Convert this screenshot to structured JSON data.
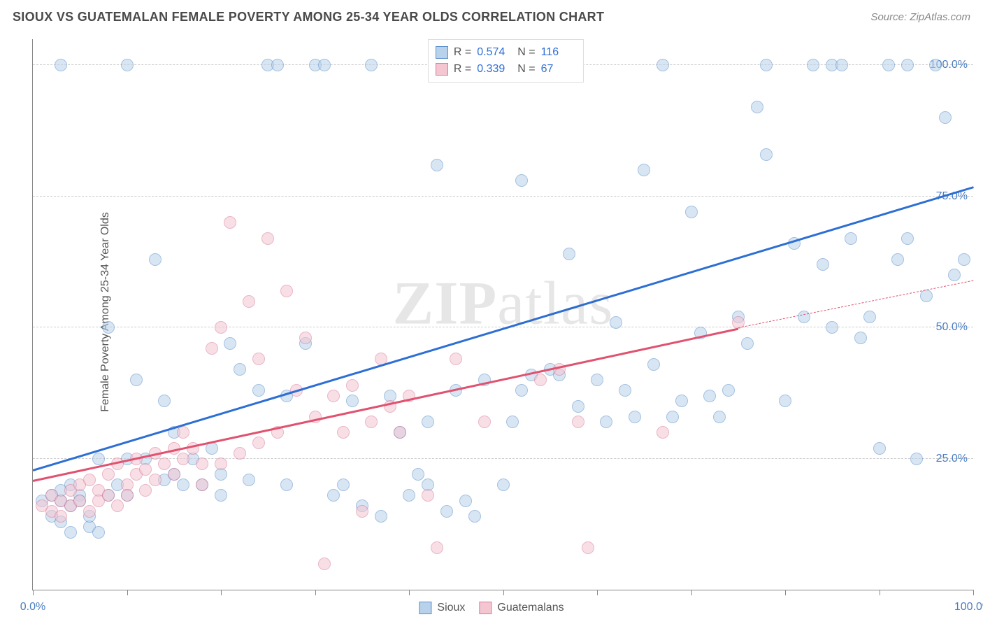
{
  "title": "SIOUX VS GUATEMALAN FEMALE POVERTY AMONG 25-34 YEAR OLDS CORRELATION CHART",
  "source_label": "Source: ZipAtlas.com",
  "y_axis_label": "Female Poverty Among 25-34 Year Olds",
  "watermark": {
    "bold": "ZIP",
    "light": "atlas"
  },
  "chart": {
    "type": "scatter",
    "xlim": [
      0,
      100
    ],
    "ylim": [
      0,
      105
    ],
    "x_ticks_pct": [
      0,
      10,
      20,
      30,
      40,
      50,
      60,
      70,
      80,
      90,
      100
    ],
    "x_tick_labels": {
      "0": "0.0%",
      "100": "100.0%"
    },
    "y_gridlines_pct": [
      25,
      50,
      75,
      100
    ],
    "y_tick_labels": {
      "25": "25.0%",
      "50": "50.0%",
      "75": "75.0%",
      "100": "100.0%"
    },
    "background_color": "#ffffff",
    "grid_color": "#cccccc",
    "axis_color": "#888888",
    "tick_label_color": "#4a7dbf",
    "marker_radius": 9,
    "marker_opacity": 0.55
  },
  "series": [
    {
      "name": "Sioux",
      "fill": "#b9d2ec",
      "stroke": "#5b8fc9",
      "line_color": "#2d6fd4",
      "R": "0.574",
      "N": "116",
      "trend": {
        "x1": 0,
        "y1": 23,
        "x2": 100,
        "y2": 77,
        "dashed_from_x": 100
      },
      "points": [
        [
          1,
          17
        ],
        [
          2,
          18
        ],
        [
          2,
          14
        ],
        [
          3,
          17
        ],
        [
          3,
          19
        ],
        [
          3,
          13
        ],
        [
          4,
          16
        ],
        [
          4,
          20
        ],
        [
          4,
          11
        ],
        [
          5,
          18
        ],
        [
          5,
          17
        ],
        [
          6,
          12
        ],
        [
          6,
          14
        ],
        [
          7,
          11
        ],
        [
          7,
          25
        ],
        [
          8,
          18
        ],
        [
          8,
          50
        ],
        [
          9,
          20
        ],
        [
          10,
          25
        ],
        [
          10,
          18
        ],
        [
          11,
          40
        ],
        [
          12,
          25
        ],
        [
          13,
          63
        ],
        [
          14,
          21
        ],
        [
          15,
          22
        ],
        [
          15,
          30
        ],
        [
          16,
          20
        ],
        [
          17,
          25
        ],
        [
          18,
          20
        ],
        [
          19,
          27
        ],
        [
          20,
          18
        ],
        [
          20,
          22
        ],
        [
          21,
          47
        ],
        [
          22,
          42
        ],
        [
          23,
          21
        ],
        [
          24,
          38
        ],
        [
          25,
          100
        ],
        [
          26,
          100
        ],
        [
          27,
          20
        ],
        [
          29,
          47
        ],
        [
          30,
          100
        ],
        [
          31,
          100
        ],
        [
          32,
          18
        ],
        [
          33,
          20
        ],
        [
          34,
          36
        ],
        [
          35,
          16
        ],
        [
          36,
          100
        ],
        [
          37,
          14
        ],
        [
          38,
          37
        ],
        [
          39,
          30
        ],
        [
          40,
          18
        ],
        [
          41,
          22
        ],
        [
          42,
          20
        ],
        [
          43,
          81
        ],
        [
          44,
          15
        ],
        [
          45,
          38
        ],
        [
          46,
          17
        ],
        [
          47,
          14
        ],
        [
          48,
          40
        ],
        [
          50,
          20
        ],
        [
          51,
          32
        ],
        [
          52,
          38
        ],
        [
          53,
          41
        ],
        [
          55,
          42
        ],
        [
          56,
          41
        ],
        [
          57,
          64
        ],
        [
          58,
          35
        ],
        [
          60,
          40
        ],
        [
          61,
          32
        ],
        [
          62,
          51
        ],
        [
          63,
          38
        ],
        [
          64,
          33
        ],
        [
          65,
          80
        ],
        [
          66,
          43
        ],
        [
          67,
          100
        ],
        [
          68,
          33
        ],
        [
          69,
          36
        ],
        [
          70,
          72
        ],
        [
          71,
          49
        ],
        [
          72,
          37
        ],
        [
          73,
          33
        ],
        [
          74,
          38
        ],
        [
          75,
          52
        ],
        [
          76,
          47
        ],
        [
          77,
          92
        ],
        [
          78,
          100
        ],
        [
          78,
          83
        ],
        [
          80,
          36
        ],
        [
          81,
          66
        ],
        [
          82,
          52
        ],
        [
          83,
          100
        ],
        [
          84,
          62
        ],
        [
          85,
          100
        ],
        [
          85,
          50
        ],
        [
          86,
          100
        ],
        [
          87,
          67
        ],
        [
          88,
          48
        ],
        [
          89,
          52
        ],
        [
          90,
          27
        ],
        [
          91,
          100
        ],
        [
          92,
          63
        ],
        [
          93,
          67
        ],
        [
          94,
          25
        ],
        [
          95,
          56
        ],
        [
          96,
          100
        ],
        [
          97,
          90
        ],
        [
          98,
          60
        ],
        [
          99,
          63
        ],
        [
          3,
          100
        ],
        [
          10,
          100
        ],
        [
          48,
          100
        ],
        [
          52,
          78
        ],
        [
          93,
          100
        ],
        [
          14,
          36
        ],
        [
          27,
          37
        ],
        [
          42,
          32
        ]
      ]
    },
    {
      "name": "Guatemalans",
      "fill": "#f4c6d2",
      "stroke": "#d97a9a",
      "line_color": "#e0526f",
      "R": "0.339",
      "N": "67",
      "trend": {
        "x1": 0,
        "y1": 21,
        "x2": 75,
        "y2": 50,
        "dashed_from_x": 75,
        "dashed_x2": 100,
        "dashed_y2": 59
      },
      "points": [
        [
          1,
          16
        ],
        [
          2,
          15
        ],
        [
          2,
          18
        ],
        [
          3,
          14
        ],
        [
          3,
          17
        ],
        [
          4,
          16
        ],
        [
          4,
          19
        ],
        [
          5,
          17
        ],
        [
          5,
          20
        ],
        [
          6,
          15
        ],
        [
          6,
          21
        ],
        [
          7,
          19
        ],
        [
          7,
          17
        ],
        [
          8,
          22
        ],
        [
          8,
          18
        ],
        [
          9,
          16
        ],
        [
          9,
          24
        ],
        [
          10,
          20
        ],
        [
          10,
          18
        ],
        [
          11,
          22
        ],
        [
          11,
          25
        ],
        [
          12,
          19
        ],
        [
          12,
          23
        ],
        [
          13,
          26
        ],
        [
          13,
          21
        ],
        [
          14,
          24
        ],
        [
          15,
          27
        ],
        [
          15,
          22
        ],
        [
          16,
          25
        ],
        [
          16,
          30
        ],
        [
          17,
          27
        ],
        [
          18,
          20
        ],
        [
          18,
          24
        ],
        [
          19,
          46
        ],
        [
          20,
          24
        ],
        [
          20,
          50
        ],
        [
          21,
          70
        ],
        [
          22,
          26
        ],
        [
          23,
          55
        ],
        [
          24,
          28
        ],
        [
          24,
          44
        ],
        [
          25,
          67
        ],
        [
          26,
          30
        ],
        [
          27,
          57
        ],
        [
          28,
          38
        ],
        [
          29,
          48
        ],
        [
          30,
          33
        ],
        [
          31,
          5
        ],
        [
          32,
          37
        ],
        [
          33,
          30
        ],
        [
          34,
          39
        ],
        [
          35,
          15
        ],
        [
          36,
          32
        ],
        [
          37,
          44
        ],
        [
          38,
          35
        ],
        [
          39,
          30
        ],
        [
          40,
          37
        ],
        [
          42,
          18
        ],
        [
          43,
          8
        ],
        [
          45,
          44
        ],
        [
          48,
          32
        ],
        [
          54,
          40
        ],
        [
          56,
          42
        ],
        [
          58,
          32
        ],
        [
          59,
          8
        ],
        [
          67,
          30
        ],
        [
          75,
          51
        ]
      ]
    }
  ],
  "legend_top": {
    "rows": [
      {
        "sw_fill": "#b9d2ec",
        "sw_stroke": "#5b8fc9",
        "r_label": "R =",
        "r_value": "0.574",
        "n_label": "N =",
        "n_value": "116"
      },
      {
        "sw_fill": "#f4c6d2",
        "sw_stroke": "#d97a9a",
        "r_label": "R =",
        "r_value": "0.339",
        "n_label": "N =",
        "n_value": "67"
      }
    ]
  },
  "legend_bottom": {
    "items": [
      {
        "sw_fill": "#b9d2ec",
        "sw_stroke": "#5b8fc9",
        "label": "Sioux"
      },
      {
        "sw_fill": "#f4c6d2",
        "sw_stroke": "#d97a9a",
        "label": "Guatemalans"
      }
    ]
  }
}
